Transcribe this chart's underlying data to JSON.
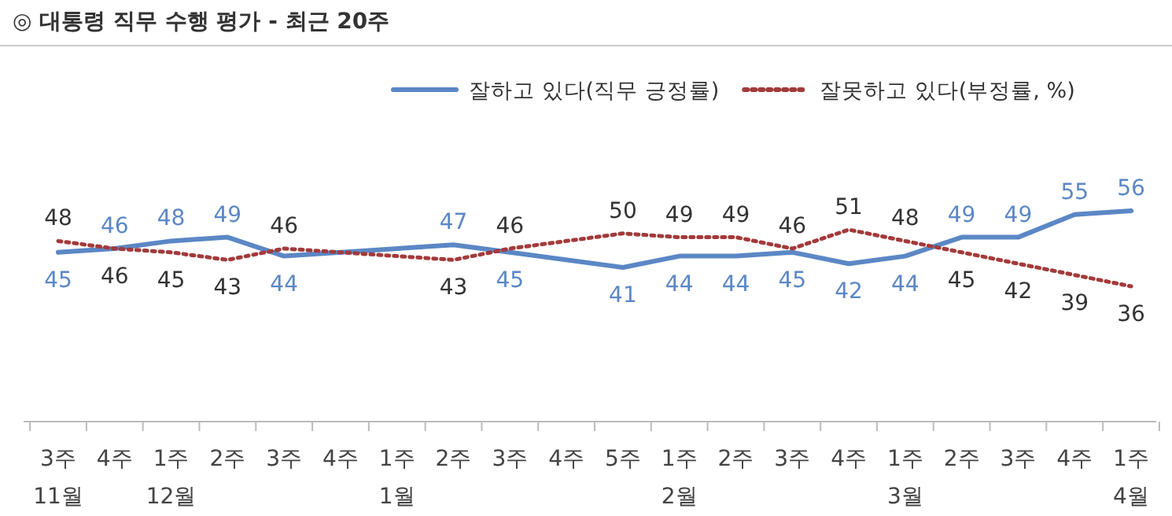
{
  "chart_data": {
    "type": "line",
    "title": "◎ 대통령 직무 수행 평가 - 최근 20주",
    "categories": [
      "3주\n11월",
      "4주",
      "1주\n12월",
      "2주",
      "3주",
      "4주",
      "1주\n1월",
      "2주",
      "3주",
      "4주",
      "5주",
      "1주\n2월",
      "2주",
      "3주",
      "4주",
      "1주\n3월",
      "2주",
      "3주",
      "4주",
      "1주\n4월"
    ],
    "series": [
      {
        "name": "잘하고 있다(직무 긍정률)",
        "color": "#5b87c5",
        "line_style": "solid",
        "values": [
          45,
          46,
          48,
          49,
          44,
          null,
          null,
          47,
          45,
          null,
          41,
          44,
          44,
          45,
          42,
          44,
          49,
          49,
          55,
          56
        ]
      },
      {
        "name": "잘못하고 있다(부정률, %)",
        "color": "#a33a3a",
        "line_style": "dotted",
        "values": [
          48,
          46,
          45,
          43,
          46,
          null,
          null,
          43,
          46,
          null,
          50,
          49,
          49,
          46,
          51,
          48,
          45,
          42,
          39,
          36
        ]
      }
    ],
    "data_labels": true,
    "legend": "top right",
    "grid": false,
    "marker": "none"
  }
}
